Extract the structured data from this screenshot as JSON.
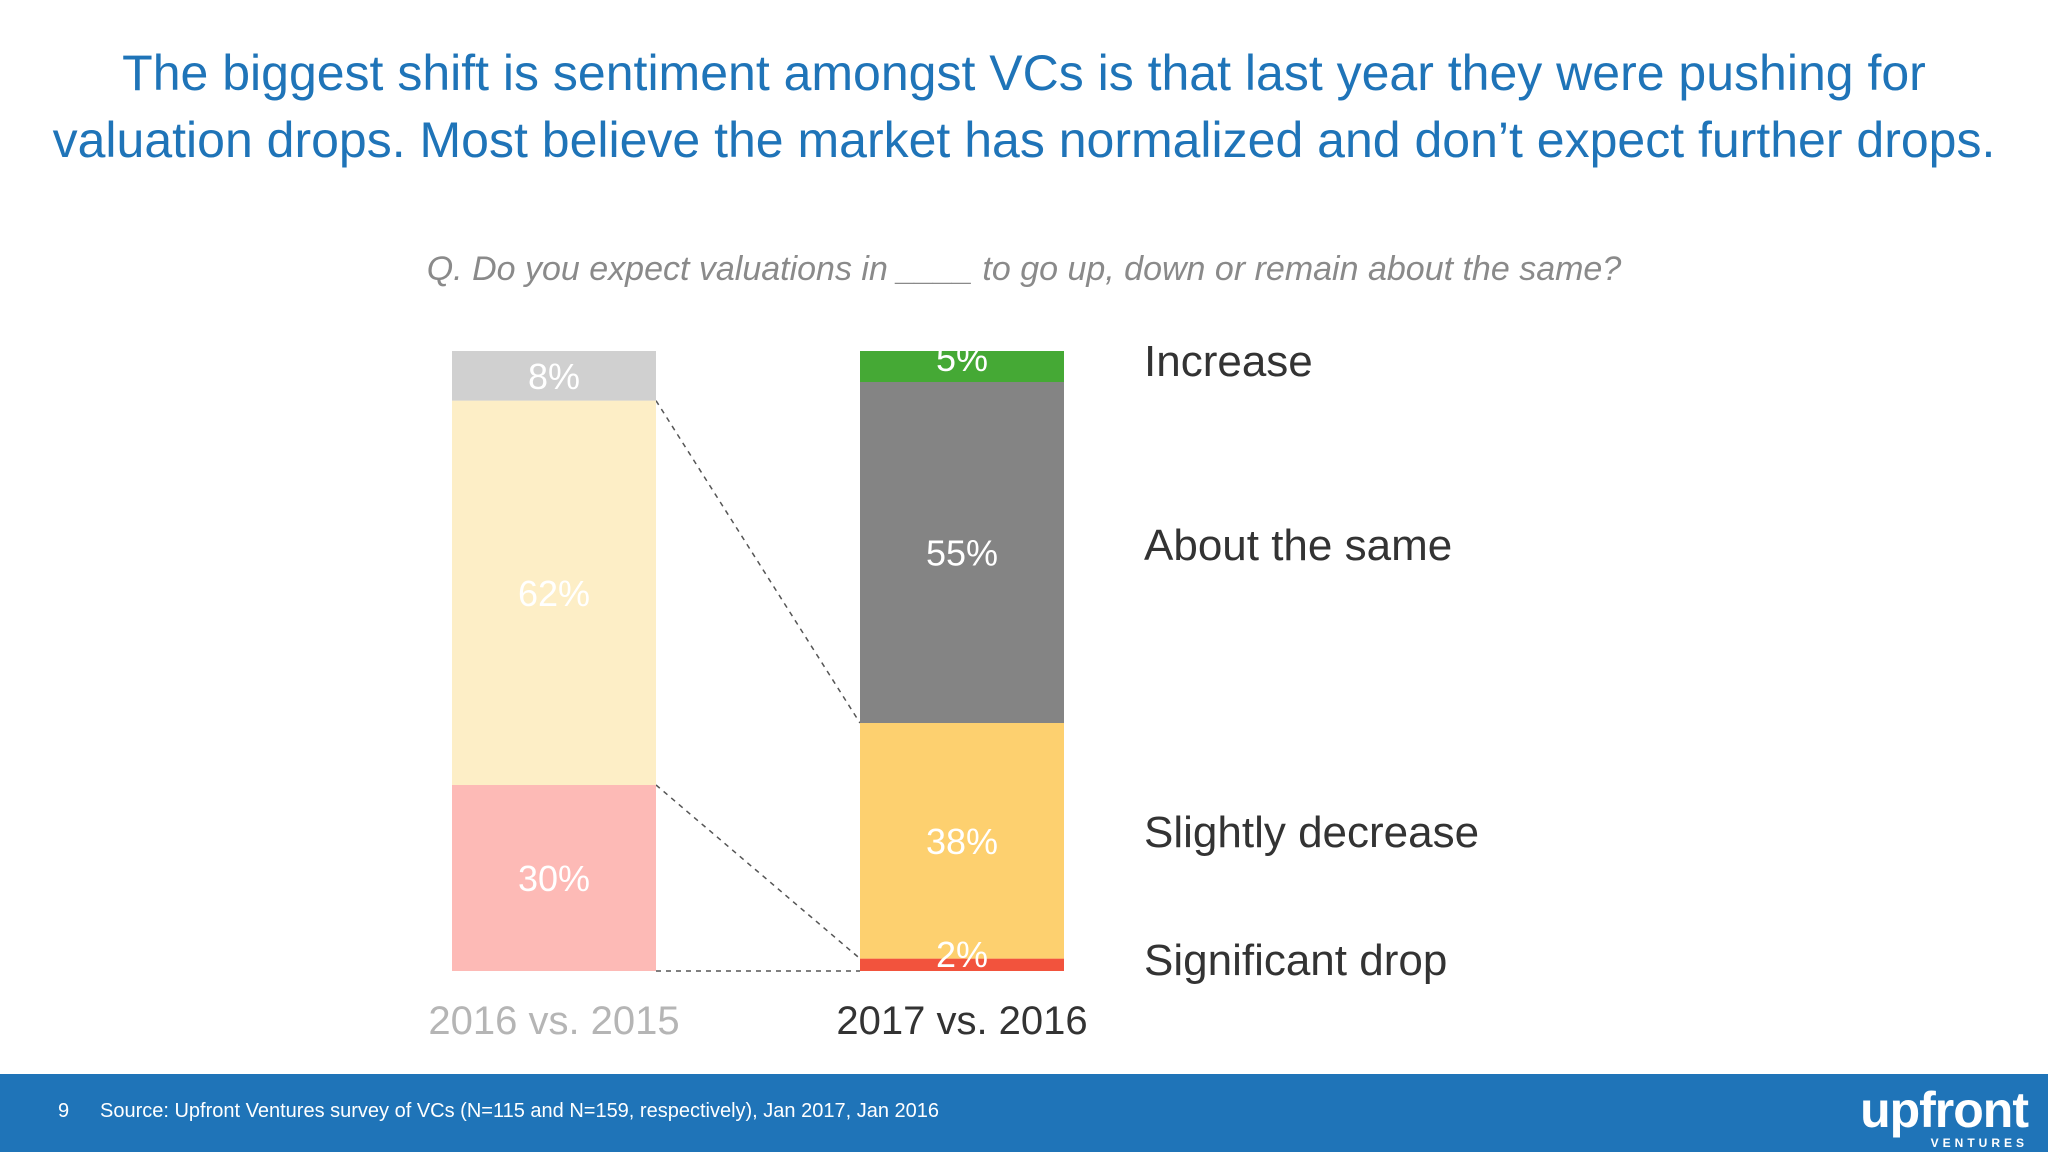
{
  "headline": {
    "line1": "The biggest shift is sentiment amongst VCs is that last year they were pushing for",
    "line2": "valuation drops. Most believe the market has normalized and don’t expect further drops."
  },
  "question": "Q. Do you expect valuations in ____ to go up, down or remain about the same?",
  "chart_data": {
    "type": "bar",
    "stacked": true,
    "categories": [
      "2016 vs. 2015",
      "2017 vs. 2016"
    ],
    "series": [
      {
        "name": "Significant drop",
        "values": [
          0,
          2
        ],
        "labels": [
          "",
          "2%"
        ],
        "colors": [
          "#fdbab6",
          "#f2533d"
        ]
      },
      {
        "name": "Slightly decrease",
        "values": [
          30,
          38
        ],
        "labels": [
          "30%",
          "38%"
        ],
        "colors": [
          "#fdbab6",
          "#fdd06f"
        ]
      },
      {
        "name": "About the same",
        "values": [
          62,
          55
        ],
        "labels": [
          "62%",
          "55%"
        ],
        "colors": [
          "#fdeec6",
          "#848484"
        ]
      },
      {
        "name": "Increase",
        "values": [
          8,
          5
        ],
        "labels": [
          "8%",
          "5%"
        ],
        "colors": [
          "#d0d0d0",
          "#45a935"
        ]
      }
    ],
    "category_label_colors": [
      "#b5b5b5",
      "#333333"
    ],
    "ylim": [
      0,
      100
    ],
    "legend": "right",
    "grid": false
  },
  "footer": {
    "page_number": "9",
    "source": "Source: Upfront Ventures survey of VCs (N=115 and N=159, respectively), Jan 2017, Jan 2016",
    "logo_text": "upfront",
    "logo_subtext": "VENTURES",
    "background_color": "#1f74b8"
  }
}
